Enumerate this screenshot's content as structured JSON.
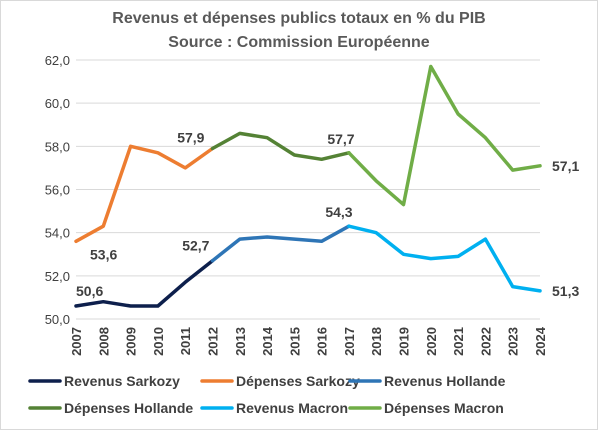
{
  "chart_data": {
    "type": "line",
    "title": "Revenus et dépenses publics totaux en % du PIB",
    "subtitle": "Source : Commission Européenne",
    "xlabel": "",
    "ylabel": "",
    "ylim": [
      50.0,
      62.0
    ],
    "yticks": [
      "50,0",
      "52,0",
      "54,0",
      "56,0",
      "58,0",
      "60,0",
      "62,0"
    ],
    "x": [
      "2007",
      "2008",
      "2009",
      "2010",
      "2011",
      "2012",
      "2013",
      "2014",
      "2015",
      "2016",
      "2017",
      "2018",
      "2019",
      "2020",
      "2021",
      "2022",
      "2023",
      "2024"
    ],
    "grid": true,
    "legend_position": "bottom",
    "series": [
      {
        "name": "Revenus Sarkozy",
        "color": "#0d1f4c",
        "x": [
          "2007",
          "2008",
          "2009",
          "2010",
          "2011",
          "2012"
        ],
        "values": [
          50.6,
          50.8,
          50.6,
          50.6,
          51.7,
          52.7
        ]
      },
      {
        "name": "Dépenses Sarkozy",
        "color": "#ed7d31",
        "x": [
          "2007",
          "2008",
          "2009",
          "2010",
          "2011",
          "2012"
        ],
        "values": [
          53.6,
          54.3,
          58.0,
          57.7,
          57.0,
          57.9
        ]
      },
      {
        "name": "Revenus Hollande",
        "color": "#2e75b6",
        "x": [
          "2012",
          "2013",
          "2014",
          "2015",
          "2016",
          "2017"
        ],
        "values": [
          52.7,
          53.7,
          53.8,
          53.7,
          53.6,
          54.3
        ]
      },
      {
        "name": "Dépenses Hollande",
        "color": "#548235",
        "x": [
          "2012",
          "2013",
          "2014",
          "2015",
          "2016",
          "2017"
        ],
        "values": [
          57.9,
          58.6,
          58.4,
          57.6,
          57.4,
          57.7
        ]
      },
      {
        "name": "Revenus Macron",
        "color": "#00b0f0",
        "x": [
          "2017",
          "2018",
          "2019",
          "2020",
          "2021",
          "2022",
          "2023",
          "2024"
        ],
        "values": [
          54.3,
          54.0,
          53.0,
          52.8,
          52.9,
          53.7,
          51.5,
          51.3
        ]
      },
      {
        "name": "Dépenses Macron",
        "color": "#70ad47",
        "x": [
          "2017",
          "2018",
          "2019",
          "2020",
          "2021",
          "2022",
          "2023",
          "2024"
        ],
        "values": [
          57.7,
          56.4,
          55.3,
          61.7,
          59.5,
          58.4,
          56.9,
          57.1
        ]
      }
    ],
    "annotations": [
      {
        "text": "50,6",
        "x": "2007",
        "y": 50.6
      },
      {
        "text": "53,6",
        "x": "2007",
        "y": 53.6
      },
      {
        "text": "52,7",
        "x": "2012",
        "y": 52.7
      },
      {
        "text": "57,9",
        "x": "2012",
        "y": 57.9
      },
      {
        "text": "54,3",
        "x": "2017",
        "y": 54.3
      },
      {
        "text": "57,7",
        "x": "2017",
        "y": 57.7
      },
      {
        "text": "57,1",
        "x": "2024",
        "y": 57.1
      },
      {
        "text": "51,3",
        "x": "2024",
        "y": 51.3
      }
    ]
  }
}
